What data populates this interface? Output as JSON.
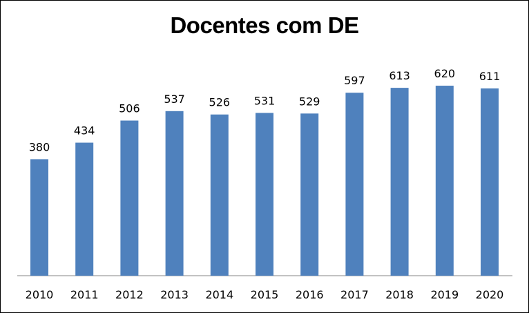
{
  "chart_data": {
    "type": "bar",
    "title": "Docentes com DE",
    "xlabel": "",
    "ylabel": "",
    "categories": [
      "2010",
      "2011",
      "2012",
      "2013",
      "2014",
      "2015",
      "2016",
      "2017",
      "2018",
      "2019",
      "2020"
    ],
    "values": [
      380,
      434,
      506,
      537,
      526,
      531,
      529,
      597,
      613,
      620,
      611
    ],
    "value_labels": [
      "380",
      "434",
      "506",
      "537",
      "526",
      "531",
      "529",
      "597",
      "613",
      "620",
      "611"
    ],
    "ylim": [
      0,
      700
    ],
    "bar_color": "#4F81BD",
    "grid": false,
    "legend": "none",
    "data_labels": true
  }
}
